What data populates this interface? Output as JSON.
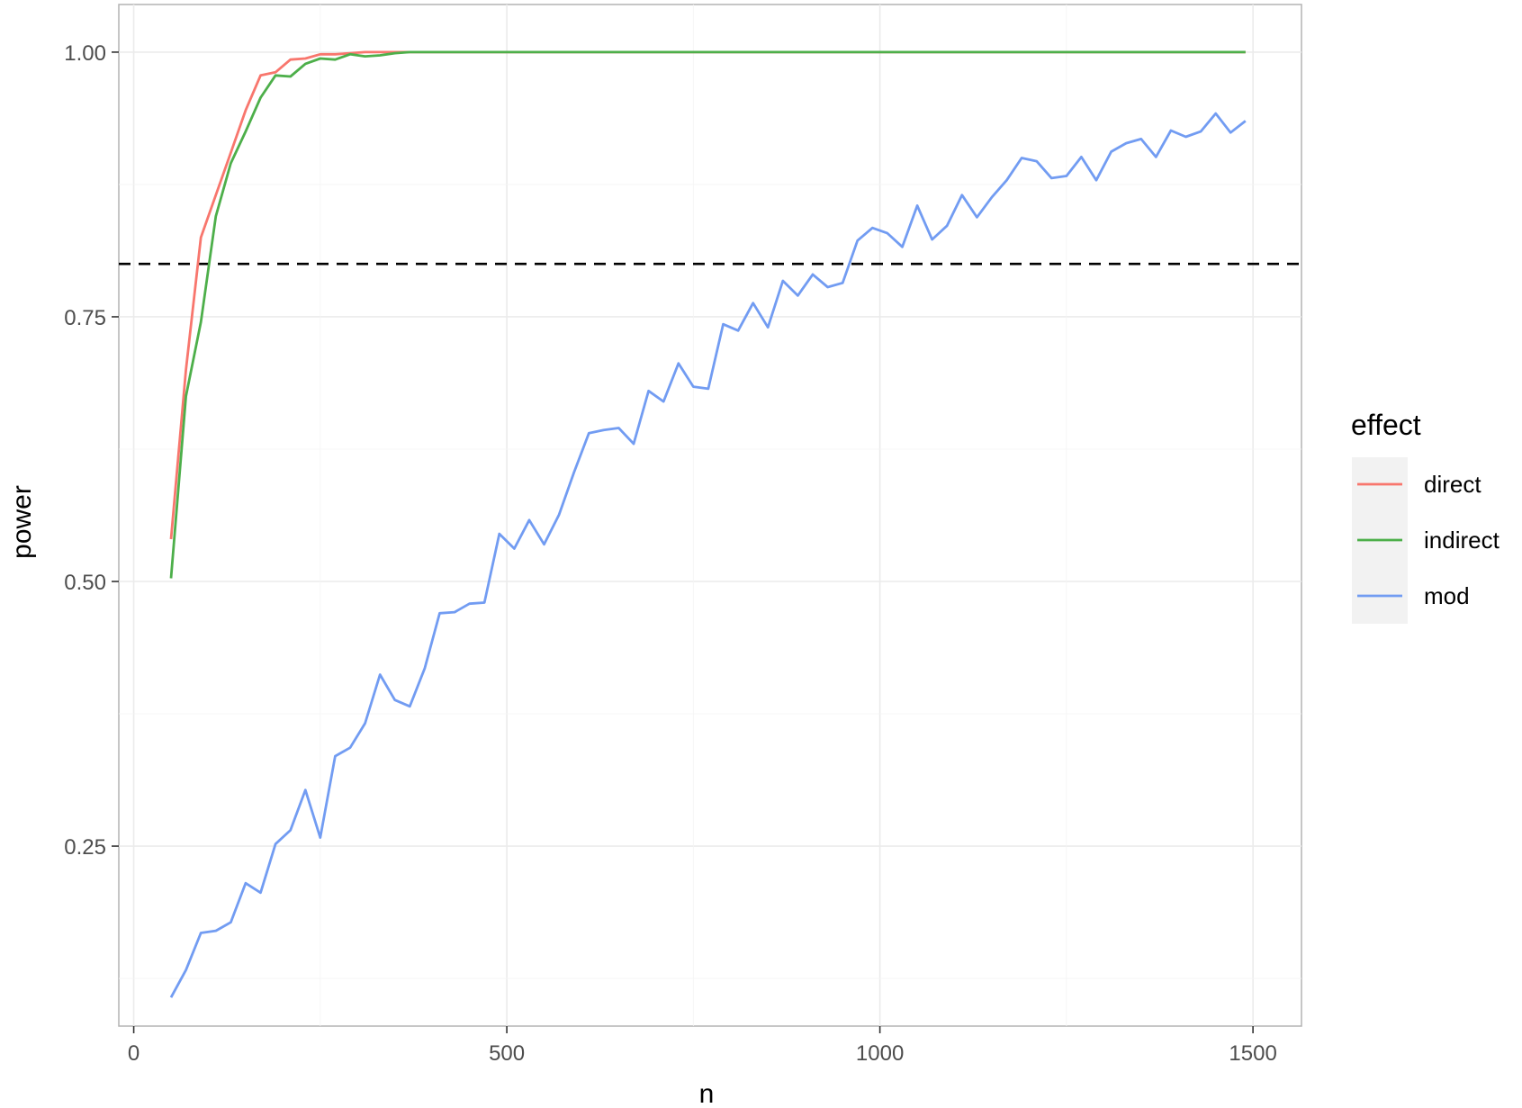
{
  "chart_data": {
    "type": "line",
    "title": "",
    "xlabel": "n",
    "ylabel": "power",
    "xlim": [
      -20,
      1565
    ],
    "ylim": [
      0.08,
      1.045
    ],
    "x_ticks": [
      0,
      500,
      1000,
      1500
    ],
    "x_tick_labels": [
      "0",
      "500",
      "1000",
      "1500"
    ],
    "y_ticks": [
      0.25,
      0.5,
      0.75,
      1.0
    ],
    "y_tick_labels": [
      "0.25",
      "0.50",
      "0.75",
      "1.00"
    ],
    "grid": true,
    "reference_line": {
      "y": 0.8,
      "style": "dashed",
      "color": "#000000"
    },
    "legend": {
      "title": "effect",
      "position": "right"
    },
    "series": [
      {
        "name": "direct",
        "color": "#F8766D",
        "x": [
          50,
          70,
          90,
          110,
          130,
          150,
          170,
          190,
          210,
          230,
          250,
          270,
          290,
          310,
          330,
          350,
          370,
          390,
          1490
        ],
        "y": [
          0.54,
          0.7,
          0.825,
          0.865,
          0.905,
          0.945,
          0.978,
          0.981,
          0.993,
          0.994,
          0.998,
          0.998,
          0.999,
          1.0,
          1.0,
          1.0,
          1.0,
          1.0,
          1.0
        ]
      },
      {
        "name": "indirect",
        "color": "#4DAF4A",
        "x": [
          50,
          70,
          90,
          110,
          130,
          150,
          170,
          190,
          210,
          230,
          250,
          270,
          290,
          310,
          330,
          350,
          370,
          390,
          1490
        ],
        "y": [
          0.503,
          0.675,
          0.745,
          0.845,
          0.895,
          0.925,
          0.957,
          0.978,
          0.977,
          0.989,
          0.994,
          0.993,
          0.998,
          0.996,
          0.997,
          0.999,
          1.0,
          1.0,
          1.0
        ]
      },
      {
        "name": "mod",
        "color": "#729CF2",
        "x": [
          50,
          70,
          90,
          110,
          130,
          150,
          170,
          190,
          210,
          230,
          250,
          270,
          290,
          310,
          330,
          350,
          370,
          390,
          410,
          430,
          450,
          470,
          490,
          510,
          530,
          550,
          570,
          590,
          610,
          630,
          650,
          670,
          690,
          710,
          730,
          750,
          770,
          790,
          810,
          830,
          850,
          870,
          890,
          910,
          930,
          950,
          970,
          990,
          1010,
          1030,
          1050,
          1070,
          1090,
          1110,
          1130,
          1150,
          1170,
          1190,
          1210,
          1230,
          1250,
          1270,
          1290,
          1310,
          1330,
          1350,
          1370,
          1390,
          1410,
          1430,
          1450,
          1470,
          1490
        ],
        "y": [
          0.107,
          0.133,
          0.168,
          0.17,
          0.178,
          0.215,
          0.206,
          0.252,
          0.265,
          0.303,
          0.258,
          0.335,
          0.343,
          0.366,
          0.412,
          0.388,
          0.382,
          0.418,
          0.47,
          0.471,
          0.479,
          0.48,
          0.545,
          0.531,
          0.558,
          0.535,
          0.563,
          0.603,
          0.64,
          0.643,
          0.645,
          0.63,
          0.68,
          0.67,
          0.706,
          0.684,
          0.682,
          0.743,
          0.737,
          0.763,
          0.74,
          0.784,
          0.77,
          0.79,
          0.778,
          0.782,
          0.822,
          0.834,
          0.829,
          0.816,
          0.855,
          0.823,
          0.836,
          0.865,
          0.844,
          0.863,
          0.879,
          0.9,
          0.897,
          0.881,
          0.883,
          0.901,
          0.879,
          0.906,
          0.914,
          0.918,
          0.901,
          0.926,
          0.92,
          0.925,
          0.942,
          0.924,
          0.935
        ]
      }
    ]
  }
}
